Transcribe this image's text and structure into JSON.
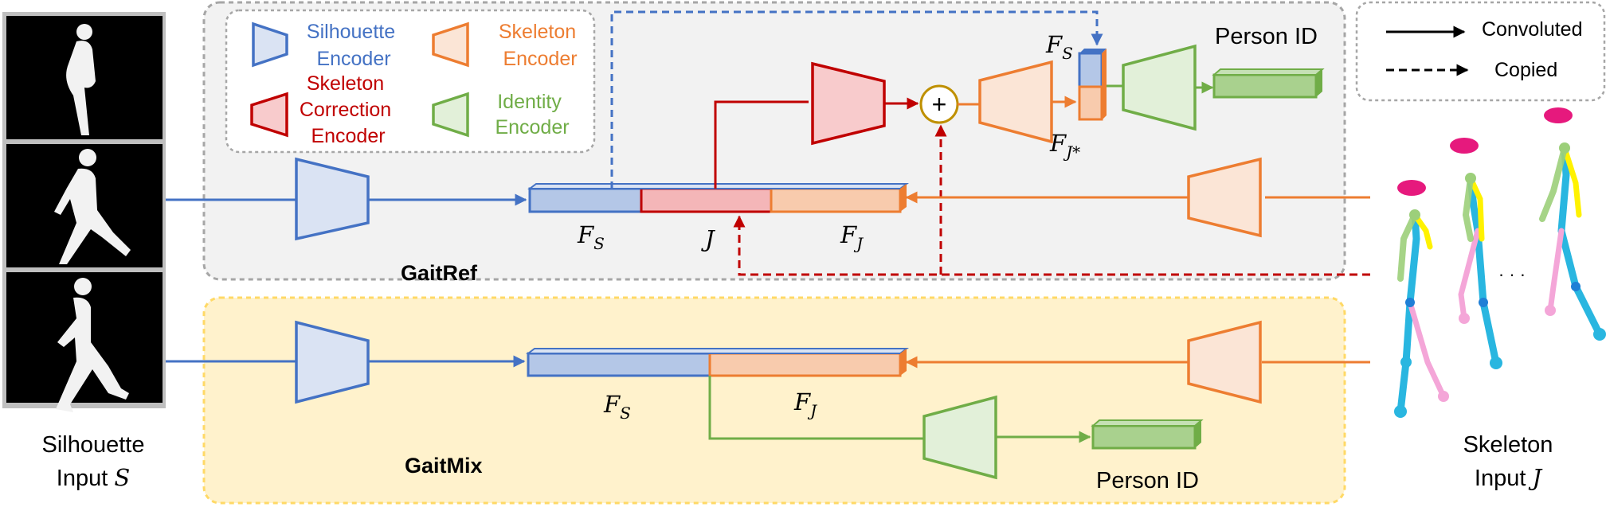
{
  "legend": {
    "silhouette_encoder": [
      "Silhouette",
      "Encoder"
    ],
    "skeleton_encoder": [
      "Skeleton",
      "Encoder"
    ],
    "skeleton_correction_encoder": [
      "Skeleton",
      "Correction",
      "Encoder"
    ],
    "identity_encoder": [
      "Identity",
      "Encoder"
    ],
    "convoluted": "Convoluted",
    "copied": "Copied"
  },
  "gaitref": {
    "title": "GaitRef",
    "output_label": "Person ID",
    "feat_s": "F",
    "feat_s_sub": "S",
    "joint": "J",
    "feat_j": "F",
    "feat_j_sub": "J",
    "feat_s_top": "F",
    "feat_s_top_sub": "S",
    "feat_jstar": "F",
    "feat_jstar_sub": "J*",
    "plus": "+"
  },
  "gaitmix": {
    "title": "GaitMix",
    "output_label": "Person ID",
    "feat_s": "F",
    "feat_s_sub": "S",
    "feat_j": "F",
    "feat_j_sub": "J"
  },
  "inputs": {
    "silhouette": [
      "Silhouette",
      "Input "
    ],
    "silhouette_var": "S",
    "skeleton": [
      "Skeleton",
      "Input "
    ],
    "skeleton_var": "J",
    "ellipsis": "· · ·"
  },
  "colors": {
    "blue": "#4472c4",
    "blue_fill": "#dae3f3",
    "orange": "#ed7d31",
    "orange_fill": "#fbe5d6",
    "red": "#c00000",
    "red_fill": "#f8cbcc",
    "green": "#70ad47",
    "green_fill": "#e2f0d9",
    "gaitref_bg": "#f2f2f2",
    "gaitmix_bg": "#fff2cc",
    "magenta": "#e6197d",
    "cyan": "#29b6e0"
  }
}
